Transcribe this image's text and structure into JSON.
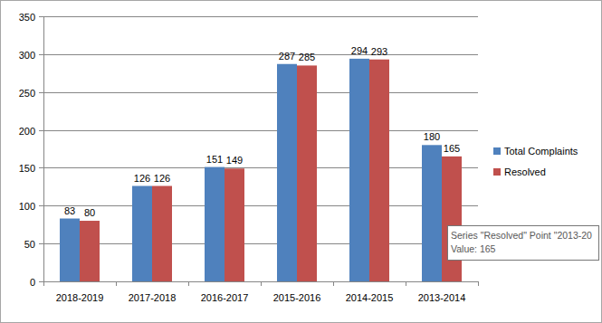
{
  "chart_data": {
    "type": "bar",
    "categories": [
      "2018-2019",
      "2017-2018",
      "2016-2017",
      "2015-2016",
      "2014-2015",
      "2013-2014"
    ],
    "series": [
      {
        "name": "Total Complaints",
        "color": "#4f81bd",
        "values": [
          83,
          126,
          151,
          287,
          294,
          180
        ]
      },
      {
        "name": "Resolved",
        "color": "#c0504d",
        "values": [
          80,
          126,
          149,
          285,
          293,
          165
        ]
      }
    ],
    "ylim": [
      0,
      350
    ],
    "yticks": [
      0,
      50,
      100,
      150,
      200,
      250,
      300,
      350
    ],
    "grid": true,
    "legend": "right",
    "data_labels": true,
    "annotations": [
      "Series \"Resolved\" Point \"2013-20",
      "Value: 165"
    ]
  }
}
